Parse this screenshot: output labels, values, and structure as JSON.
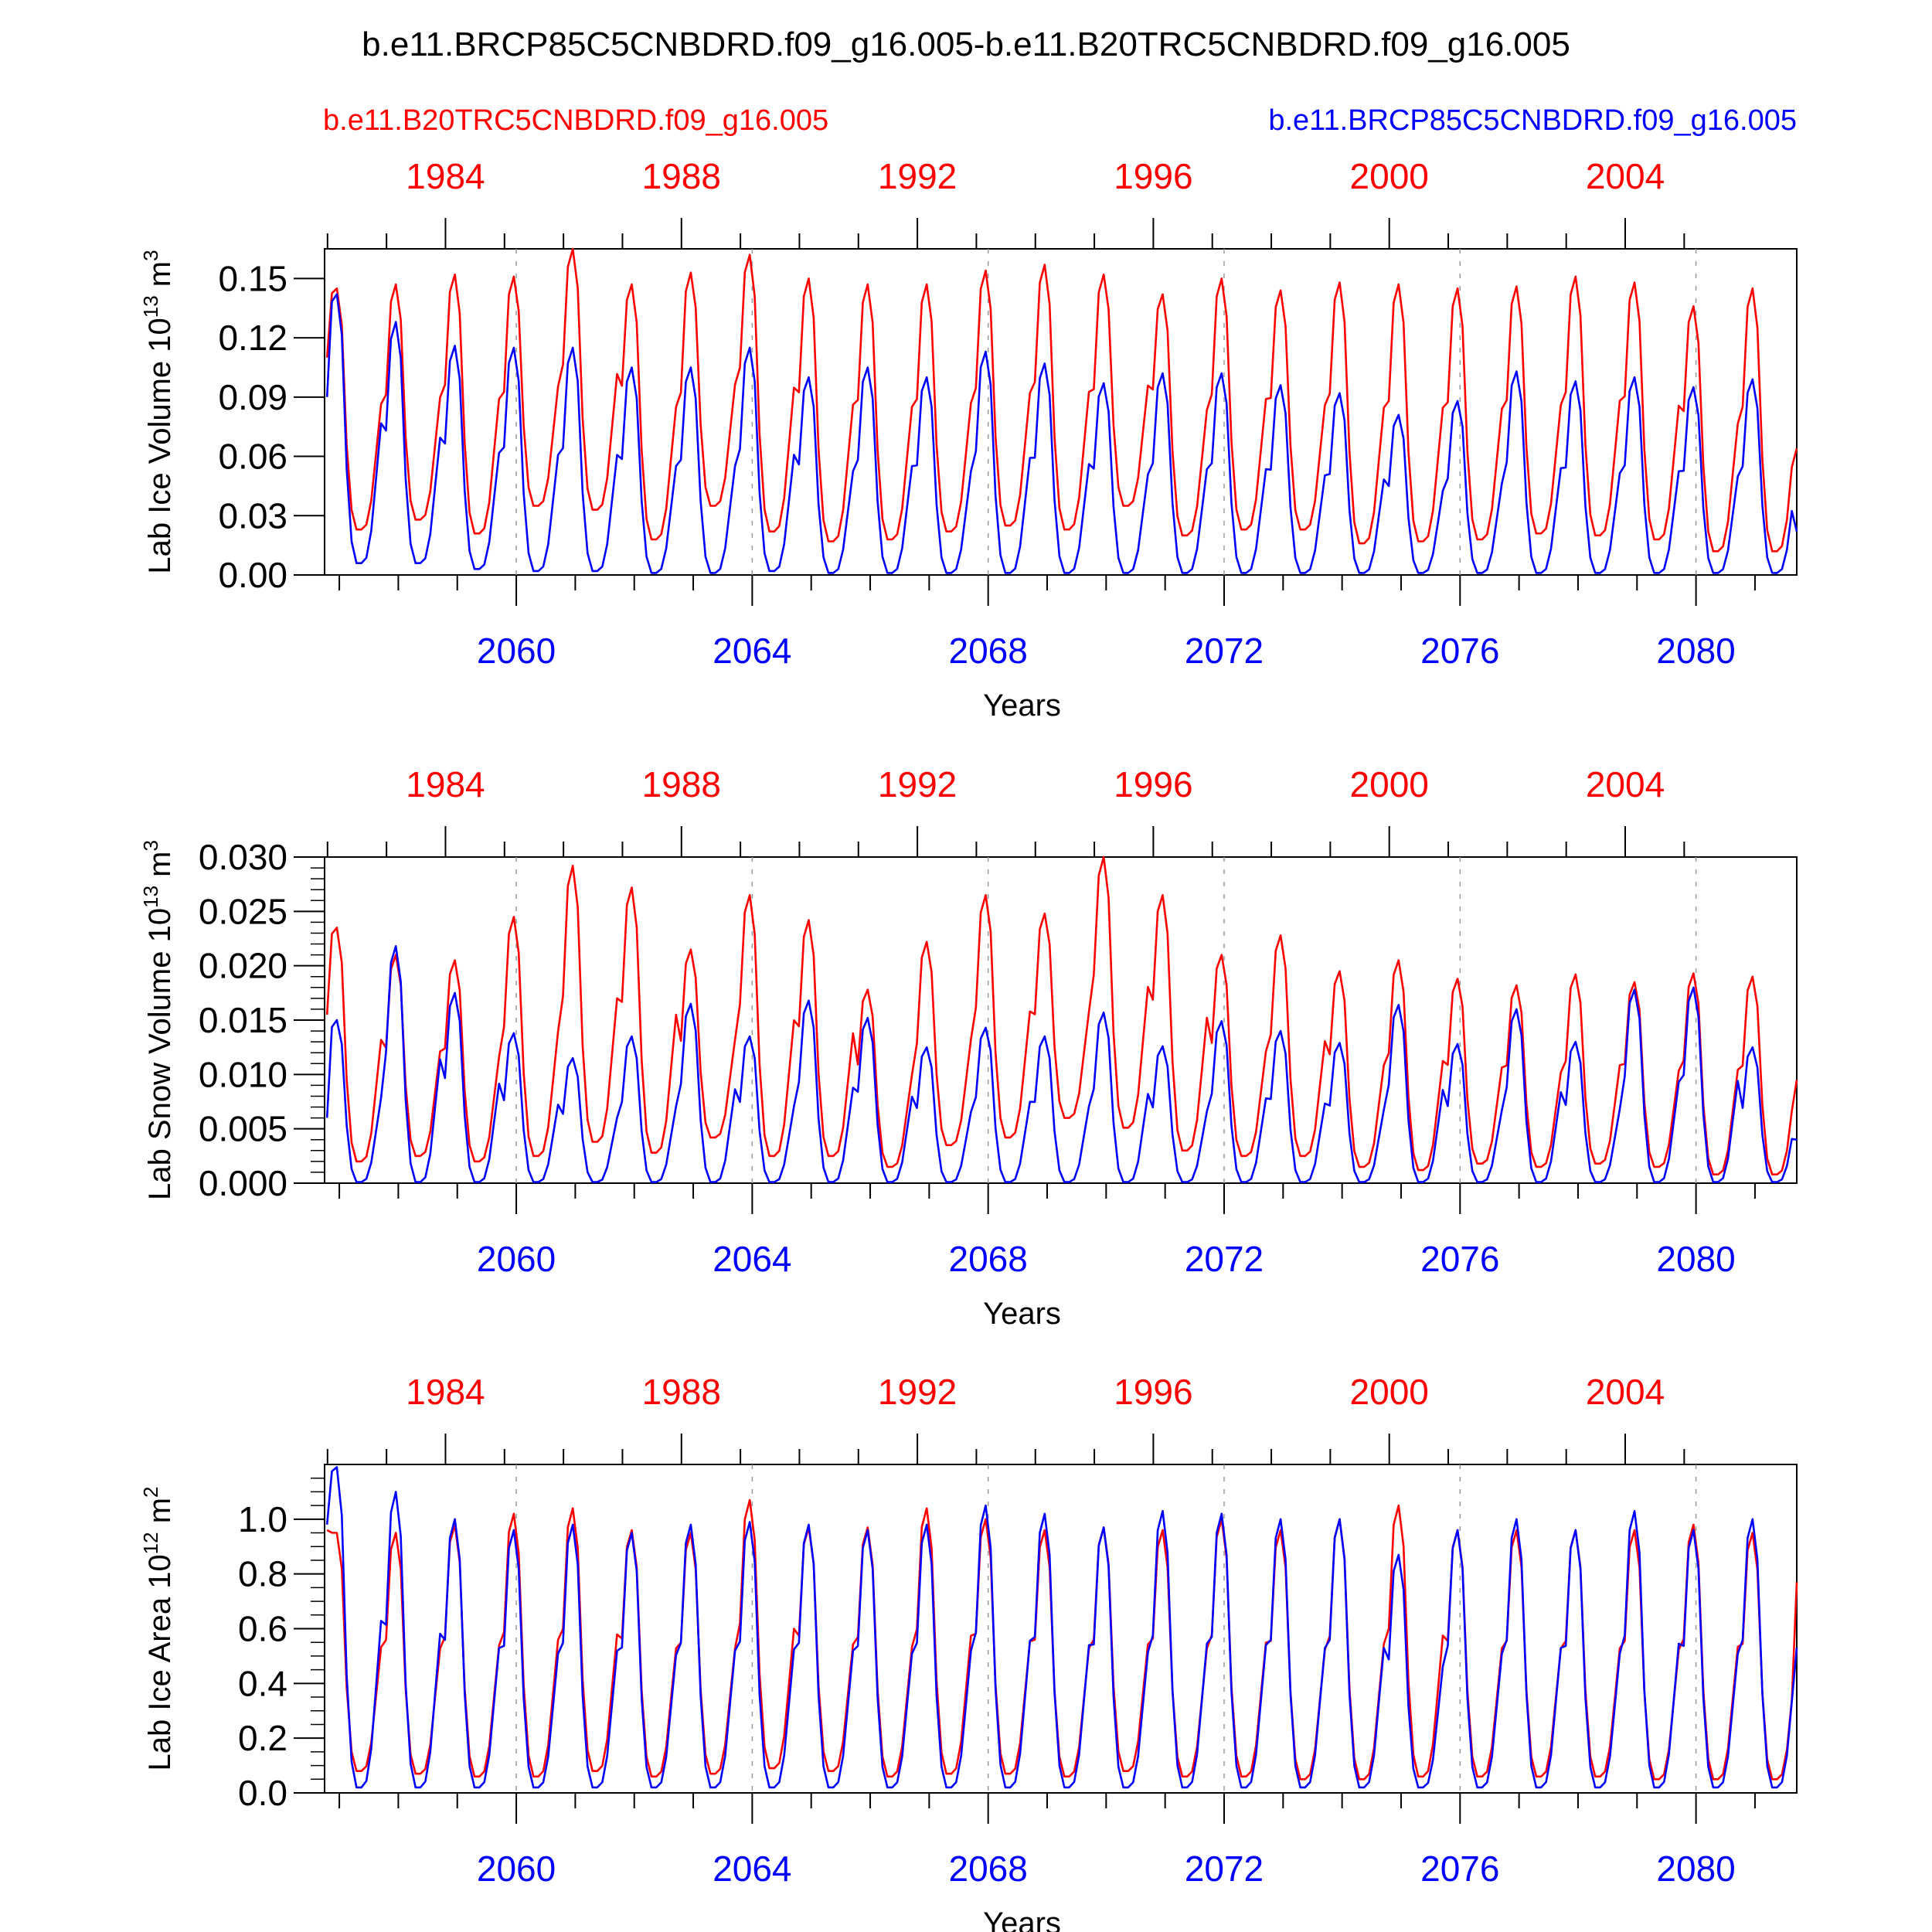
{
  "title": "b.e11.BRCP85C5CNBDRD.f09_g16.005-b.e11.B20TRC5CNBDRD.f09_g16.005",
  "legend": {
    "red": "b.e11.B20TRC5CNBDRD.f09_g16.005",
    "blue": "b.e11.BRCP85C5CNBDRD.f09_g16.005"
  },
  "colors": {
    "red": "#ff0000",
    "blue": "#0000ff",
    "axis": "#000000",
    "grid": "#999999"
  },
  "chart_data": [
    {
      "type": "line",
      "ylabel": "Lab Ice Volume 10",
      "ylabel_exp": "13",
      "ylabel_unit": " m",
      "ylabel_unit_exp": "3",
      "xlabel": "Years",
      "ylim": [
        0,
        0.165
      ],
      "yticks": [
        "0.00",
        "0.03",
        "0.06",
        "0.09",
        "0.12",
        "0.15"
      ],
      "ytick_values": [
        0,
        0.03,
        0.06,
        0.09,
        0.12,
        0.15
      ],
      "minor_yticks": [],
      "top_xticks": [
        "1984",
        "1988",
        "1992",
        "1996",
        "2000",
        "2004"
      ],
      "bottom_xticks": [
        "2060",
        "2064",
        "2068",
        "2072",
        "2076",
        "2080"
      ],
      "series": [
        {
          "name": "b.e11.B20TRC5CNBDRD.f09_g16.005",
          "color": "red",
          "peaks": [
            0.145,
            0.147,
            0.152,
            0.151,
            0.165,
            0.147,
            0.153,
            0.162,
            0.15,
            0.147,
            0.147,
            0.154,
            0.157,
            0.152,
            0.142,
            0.15,
            0.144,
            0.148,
            0.147,
            0.145,
            0.146,
            0.151,
            0.148,
            0.136,
            0.145
          ],
          "troughs": [
            0.11,
            0.023,
            0.028,
            0.021,
            0.035,
            0.033,
            0.018,
            0.035,
            0.022,
            0.017,
            0.018,
            0.022,
            0.025,
            0.023,
            0.035,
            0.02,
            0.023,
            0.023,
            0.016,
            0.017,
            0.018,
            0.021,
            0.02,
            0.018,
            0.012
          ],
          "end": 0.064
        },
        {
          "name": "b.e11.BRCP85C5CNBDRD.f09_g16.005",
          "color": "blue",
          "peaks": [
            0.142,
            0.128,
            0.116,
            0.115,
            0.115,
            0.105,
            0.105,
            0.115,
            0.1,
            0.105,
            0.1,
            0.113,
            0.107,
            0.097,
            0.102,
            0.102,
            0.096,
            0.092,
            0.081,
            0.088,
            0.103,
            0.098,
            0.1,
            0.095,
            0.099
          ],
          "troughs": [
            0.09,
            0.006,
            0.006,
            0.003,
            0.002,
            0.002,
            0.001,
            0.001,
            0.002,
            0.001,
            0.001,
            0.001,
            0.001,
            0.001,
            0.001,
            0.001,
            0.001,
            0.001,
            0.001,
            0.001,
            0.001,
            0.001,
            0.001,
            0.001,
            0.001
          ],
          "end": 0.022
        }
      ]
    },
    {
      "type": "line",
      "ylabel": "Lab Snow Volume 10",
      "ylabel_exp": "13",
      "ylabel_unit": " m",
      "ylabel_unit_exp": "3",
      "xlabel": "Years",
      "ylim": [
        0,
        0.03
      ],
      "yticks": [
        "0.000",
        "0.005",
        "0.010",
        "0.015",
        "0.020",
        "0.025",
        "0.030"
      ],
      "ytick_values": [
        0,
        0.005,
        0.01,
        0.015,
        0.02,
        0.025,
        0.03
      ],
      "minor_yticks": [
        0.001,
        0.002,
        0.003,
        0.004,
        0.006,
        0.007,
        0.008,
        0.009,
        0.011,
        0.012,
        0.013,
        0.014,
        0.016,
        0.017,
        0.018,
        0.019,
        0.021,
        0.022,
        0.023,
        0.024,
        0.026,
        0.027,
        0.028,
        0.029
      ],
      "top_xticks": [
        "1984",
        "1988",
        "1992",
        "1996",
        "2000",
        "2004"
      ],
      "bottom_xticks": [
        "2060",
        "2064",
        "2068",
        "2072",
        "2076",
        "2080"
      ],
      "series": [
        {
          "name": "b.e11.B20TRC5CNBDRD.f09_g16.005",
          "color": "red",
          "peaks": [
            0.0235,
            0.021,
            0.0205,
            0.0245,
            0.0292,
            0.0272,
            0.0215,
            0.0265,
            0.0242,
            0.0178,
            0.0222,
            0.0265,
            0.0248,
            0.03,
            0.0265,
            0.021,
            0.0228,
            0.0195,
            0.0205,
            0.0188,
            0.0182,
            0.0192,
            0.0185,
            0.0193,
            0.019
          ],
          "troughs": [
            0.0155,
            0.002,
            0.0025,
            0.002,
            0.0025,
            0.0038,
            0.0028,
            0.0042,
            0.0025,
            0.0025,
            0.0015,
            0.0035,
            0.0042,
            0.006,
            0.0051,
            0.003,
            0.0025,
            0.0025,
            0.0015,
            0.0012,
            0.0018,
            0.0015,
            0.0018,
            0.0015,
            0.0008
          ],
          "end": 0.0095
        },
        {
          "name": "b.e11.BRCP85C5CNBDRD.f09_g16.005",
          "color": "blue",
          "peaks": [
            0.015,
            0.0218,
            0.0175,
            0.0138,
            0.0115,
            0.0135,
            0.0165,
            0.0135,
            0.0168,
            0.0152,
            0.0125,
            0.0143,
            0.0135,
            0.0157,
            0.0126,
            0.0149,
            0.014,
            0.0129,
            0.0164,
            0.0128,
            0.016,
            0.013,
            0.0178,
            0.018,
            0.0125
          ],
          "troughs": [
            0.006,
            0.0001,
            0.0001,
            0.0001,
            0.0001,
            0.0001,
            0.0001,
            0.0001,
            0.0001,
            0.0001,
            0.0001,
            0.0001,
            0.0001,
            0.0001,
            0.0001,
            0.0001,
            0.0001,
            0.0001,
            0.0001,
            0.0001,
            0.0001,
            0.0001,
            0.0001,
            0.0001,
            0.0001
          ],
          "end": 0.004
        }
      ]
    },
    {
      "type": "line",
      "ylabel": "Lab Ice Area 10",
      "ylabel_exp": "12",
      "ylabel_unit": " m",
      "ylabel_unit_exp": "2",
      "xlabel": "Years",
      "ylim": [
        0,
        1.2
      ],
      "yticks": [
        "0.0",
        "0.2",
        "0.4",
        "0.6",
        "0.8",
        "1.0"
      ],
      "ytick_values": [
        0,
        0.2,
        0.4,
        0.6,
        0.8,
        1.0
      ],
      "minor_yticks": [
        0.05,
        0.1,
        0.15,
        0.25,
        0.3,
        0.35,
        0.45,
        0.5,
        0.55,
        0.65,
        0.7,
        0.75,
        0.85,
        0.9,
        0.95,
        1.05,
        1.1,
        1.15
      ],
      "top_xticks": [
        "1984",
        "1988",
        "1992",
        "1996",
        "2000",
        "2004"
      ],
      "bottom_xticks": [
        "2060",
        "2064",
        "2068",
        "2072",
        "2076",
        "2080"
      ],
      "series": [
        {
          "name": "b.e11.B20TRC5CNBDRD.f09_g16.005",
          "color": "red",
          "peaks": [
            0.95,
            0.95,
            0.98,
            1.02,
            1.04,
            0.96,
            0.95,
            1.07,
            0.97,
            0.97,
            1.04,
            1.0,
            0.96,
            0.97,
            0.96,
            1.0,
            0.96,
            1.0,
            1.05,
            0.96,
            0.96,
            0.96,
            0.96,
            0.98,
            0.95
          ],
          "troughs": [
            0.96,
            0.08,
            0.07,
            0.06,
            0.06,
            0.08,
            0.06,
            0.07,
            0.09,
            0.08,
            0.06,
            0.07,
            0.07,
            0.06,
            0.08,
            0.06,
            0.06,
            0.05,
            0.05,
            0.06,
            0.06,
            0.06,
            0.06,
            0.05,
            0.05
          ],
          "end": 0.77
        },
        {
          "name": "b.e11.BRCP85C5CNBDRD.f09_g16.005",
          "color": "blue",
          "peaks": [
            1.19,
            1.1,
            1.0,
            0.96,
            0.98,
            0.95,
            0.98,
            0.99,
            0.98,
            0.96,
            0.98,
            1.05,
            1.02,
            0.97,
            1.03,
            1.02,
            1.0,
            1.0,
            0.87,
            0.96,
            1.0,
            0.96,
            1.03,
            0.96,
            1.0
          ],
          "troughs": [
            0.98,
            0.02,
            0.02,
            0.02,
            0.02,
            0.02,
            0.02,
            0.02,
            0.02,
            0.02,
            0.02,
            0.02,
            0.02,
            0.02,
            0.02,
            0.02,
            0.02,
            0.02,
            0.02,
            0.02,
            0.02,
            0.02,
            0.02,
            0.02,
            0.02
          ],
          "end": 0.53
        }
      ]
    }
  ]
}
